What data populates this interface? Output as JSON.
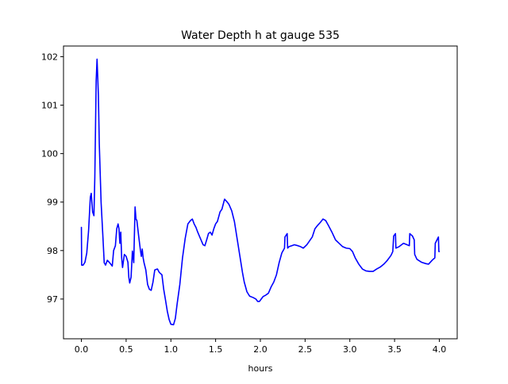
{
  "chart_data": {
    "type": "line",
    "title": "Water Depth h at gauge 535",
    "xlabel": "hours",
    "ylabel": "",
    "xlim": [
      -0.2,
      4.2
    ],
    "ylim": [
      96.18,
      102.22
    ],
    "xticks": [
      0.0,
      0.5,
      1.0,
      1.5,
      2.0,
      2.5,
      3.0,
      3.5,
      4.0
    ],
    "xtick_labels": [
      "0.0",
      "0.5",
      "1.0",
      "1.5",
      "2.0",
      "2.5",
      "3.0",
      "3.5",
      "4.0"
    ],
    "yticks": [
      97,
      98,
      99,
      100,
      101,
      102
    ],
    "ytick_labels": [
      "97",
      "98",
      "99",
      "100",
      "101",
      "102"
    ],
    "grid": false,
    "legend": "none",
    "series": [
      {
        "color": "#0000ff",
        "points": [
          [
            0.0,
            98.48
          ],
          [
            0.003,
            97.7
          ],
          [
            0.02,
            97.7
          ],
          [
            0.04,
            97.76
          ],
          [
            0.06,
            97.95
          ],
          [
            0.08,
            98.4
          ],
          [
            0.1,
            99.1
          ],
          [
            0.11,
            99.18
          ],
          [
            0.125,
            98.8
          ],
          [
            0.14,
            98.72
          ],
          [
            0.15,
            99.5
          ],
          [
            0.165,
            101.5
          ],
          [
            0.175,
            101.95
          ],
          [
            0.19,
            101.2
          ],
          [
            0.2,
            100.2
          ],
          [
            0.22,
            99.0
          ],
          [
            0.24,
            98.3
          ],
          [
            0.255,
            97.75
          ],
          [
            0.27,
            97.7
          ],
          [
            0.29,
            97.8
          ],
          [
            0.32,
            97.74
          ],
          [
            0.345,
            97.68
          ],
          [
            0.36,
            98.0
          ],
          [
            0.38,
            98.1
          ],
          [
            0.395,
            98.45
          ],
          [
            0.41,
            98.55
          ],
          [
            0.42,
            98.45
          ],
          [
            0.43,
            98.15
          ],
          [
            0.44,
            98.38
          ],
          [
            0.45,
            97.85
          ],
          [
            0.46,
            97.65
          ],
          [
            0.48,
            97.92
          ],
          [
            0.5,
            97.88
          ],
          [
            0.52,
            97.76
          ],
          [
            0.53,
            97.45
          ],
          [
            0.54,
            97.33
          ],
          [
            0.555,
            97.45
          ],
          [
            0.57,
            97.99
          ],
          [
            0.585,
            97.75
          ],
          [
            0.6,
            98.9
          ],
          [
            0.61,
            98.65
          ],
          [
            0.62,
            98.62
          ],
          [
            0.64,
            98.3
          ],
          [
            0.66,
            98.0
          ],
          [
            0.67,
            97.88
          ],
          [
            0.68,
            98.03
          ],
          [
            0.69,
            97.85
          ],
          [
            0.7,
            97.75
          ],
          [
            0.72,
            97.6
          ],
          [
            0.74,
            97.3
          ],
          [
            0.76,
            97.2
          ],
          [
            0.78,
            97.18
          ],
          [
            0.8,
            97.35
          ],
          [
            0.82,
            97.6
          ],
          [
            0.85,
            97.62
          ],
          [
            0.87,
            97.55
          ],
          [
            0.9,
            97.5
          ],
          [
            0.92,
            97.2
          ],
          [
            0.94,
            96.98
          ],
          [
            0.96,
            96.75
          ],
          [
            0.98,
            96.58
          ],
          [
            1.0,
            96.48
          ],
          [
            1.03,
            96.47
          ],
          [
            1.05,
            96.6
          ],
          [
            1.07,
            96.9
          ],
          [
            1.1,
            97.3
          ],
          [
            1.13,
            97.85
          ],
          [
            1.16,
            98.25
          ],
          [
            1.19,
            98.55
          ],
          [
            1.22,
            98.62
          ],
          [
            1.24,
            98.65
          ],
          [
            1.26,
            98.55
          ],
          [
            1.28,
            98.48
          ],
          [
            1.3,
            98.38
          ],
          [
            1.33,
            98.25
          ],
          [
            1.36,
            98.12
          ],
          [
            1.38,
            98.1
          ],
          [
            1.4,
            98.22
          ],
          [
            1.42,
            98.35
          ],
          [
            1.44,
            98.38
          ],
          [
            1.46,
            98.32
          ],
          [
            1.48,
            98.45
          ],
          [
            1.5,
            98.55
          ],
          [
            1.52,
            98.6
          ],
          [
            1.55,
            98.8
          ],
          [
            1.57,
            98.85
          ],
          [
            1.6,
            99.06
          ],
          [
            1.63,
            99.0
          ],
          [
            1.65,
            98.95
          ],
          [
            1.68,
            98.82
          ],
          [
            1.71,
            98.6
          ],
          [
            1.74,
            98.25
          ],
          [
            1.77,
            97.9
          ],
          [
            1.8,
            97.55
          ],
          [
            1.82,
            97.35
          ],
          [
            1.85,
            97.15
          ],
          [
            1.88,
            97.06
          ],
          [
            1.92,
            97.03
          ],
          [
            1.95,
            97.0
          ],
          [
            1.97,
            96.95
          ],
          [
            1.99,
            96.95
          ],
          [
            2.01,
            97.0
          ],
          [
            2.03,
            97.05
          ],
          [
            2.06,
            97.08
          ],
          [
            2.09,
            97.12
          ],
          [
            2.12,
            97.25
          ],
          [
            2.15,
            97.35
          ],
          [
            2.18,
            97.5
          ],
          [
            2.21,
            97.75
          ],
          [
            2.24,
            97.95
          ],
          [
            2.27,
            98.05
          ],
          [
            2.275,
            98.28
          ],
          [
            2.3,
            98.35
          ],
          [
            2.305,
            98.05
          ],
          [
            2.32,
            98.08
          ],
          [
            2.35,
            98.1
          ],
          [
            2.38,
            98.12
          ],
          [
            2.42,
            98.1
          ],
          [
            2.45,
            98.08
          ],
          [
            2.48,
            98.05
          ],
          [
            2.52,
            98.12
          ],
          [
            2.55,
            98.2
          ],
          [
            2.58,
            98.28
          ],
          [
            2.61,
            98.45
          ],
          [
            2.64,
            98.52
          ],
          [
            2.67,
            98.58
          ],
          [
            2.7,
            98.65
          ],
          [
            2.73,
            98.62
          ],
          [
            2.76,
            98.52
          ],
          [
            2.8,
            98.38
          ],
          [
            2.84,
            98.22
          ],
          [
            2.88,
            98.15
          ],
          [
            2.92,
            98.08
          ],
          [
            2.96,
            98.05
          ],
          [
            3.0,
            98.04
          ],
          [
            3.03,
            97.98
          ],
          [
            3.06,
            97.85
          ],
          [
            3.1,
            97.72
          ],
          [
            3.14,
            97.62
          ],
          [
            3.18,
            97.58
          ],
          [
            3.22,
            97.57
          ],
          [
            3.26,
            97.57
          ],
          [
            3.3,
            97.62
          ],
          [
            3.34,
            97.66
          ],
          [
            3.38,
            97.72
          ],
          [
            3.42,
            97.8
          ],
          [
            3.46,
            97.9
          ],
          [
            3.48,
            97.98
          ],
          [
            3.49,
            98.3
          ],
          [
            3.51,
            98.35
          ],
          [
            3.515,
            98.05
          ],
          [
            3.55,
            98.08
          ],
          [
            3.6,
            98.15
          ],
          [
            3.64,
            98.12
          ],
          [
            3.665,
            98.1
          ],
          [
            3.67,
            98.35
          ],
          [
            3.7,
            98.3
          ],
          [
            3.72,
            98.22
          ],
          [
            3.725,
            97.92
          ],
          [
            3.75,
            97.82
          ],
          [
            3.8,
            97.76
          ],
          [
            3.85,
            97.73
          ],
          [
            3.88,
            97.72
          ],
          [
            3.92,
            97.8
          ],
          [
            3.95,
            97.85
          ],
          [
            3.955,
            98.15
          ],
          [
            3.99,
            98.28
          ],
          [
            3.995,
            97.98
          ],
          [
            4.0,
            97.98
          ]
        ]
      }
    ]
  }
}
